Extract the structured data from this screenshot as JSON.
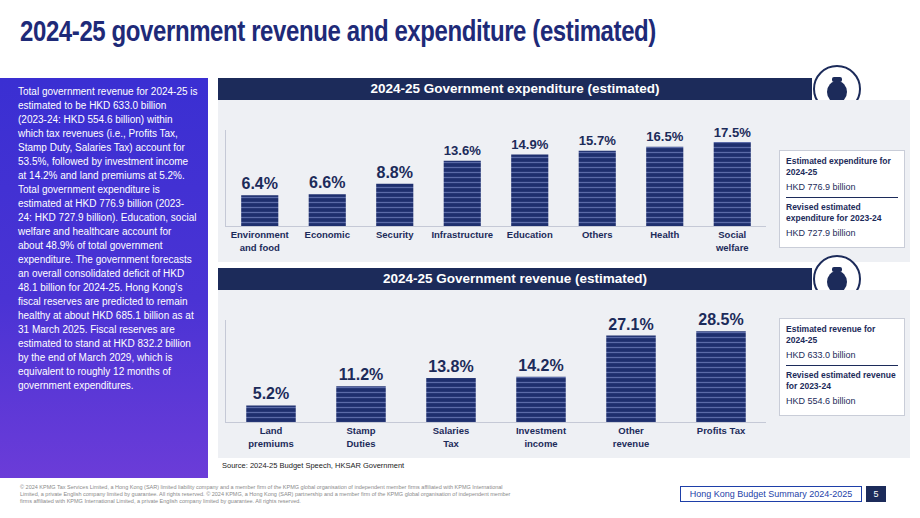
{
  "title": "2024-25 government revenue and expenditure (estimated)",
  "intro": "Total government revenue for 2024-25 is estimated to be HKD 633.0 billion (2023-24: HKD 554.6 billion) within which tax revenues (i.e., Profits Tax, Stamp Duty, Salaries Tax) account for 53.5%, followed by investment income at 14.2% and land premiums at 5.2%. Total government expenditure is estimated at HKD 776.9 billion (2023-24: HKD 727.9 billion). Education, social welfare and healthcare account for about 48.9% of total government expenditure. The government forecasts an overall consolidated deficit of HKD 48.1 billion for 2024-25. Hong Kong’s fiscal reserves are predicted to remain healthy at about HKD 685.1 billion as at 31 March 2025. Fiscal reserves are estimated to stand at HKD 832.2 billion by the end of March 2029, which is equivalent to roughly 12 months of government expenditures.",
  "chart_data": [
    {
      "type": "bar",
      "title": "2024-25 Government expenditure (estimated)",
      "categories": [
        "Environment and food",
        "Economic",
        "Security",
        "Infrastructure",
        "Education",
        "Others",
        "Health",
        "Social welfare"
      ],
      "values": [
        6.4,
        6.6,
        8.8,
        13.6,
        14.9,
        15.7,
        16.5,
        17.5
      ],
      "value_labels": [
        "6.4%",
        "6.6%",
        "8.8%",
        "13.6%",
        "14.9%",
        "15.7%",
        "16.5%",
        "17.5%"
      ],
      "color": "#1e2f6e",
      "ylim": [
        0,
        20
      ],
      "grid": false,
      "data_labels": true,
      "tick_labels": "x"
    },
    {
      "type": "bar",
      "title": "2024-25 Government revenue  (estimated)",
      "categories": [
        "Land premiums",
        "Stamp Duties",
        "Salaries Tax",
        "Investment income",
        "Other revenue",
        "Profits Tax"
      ],
      "values": [
        5.2,
        11.2,
        13.8,
        14.2,
        27.1,
        28.5
      ],
      "value_labels": [
        "5.2%",
        "11.2%",
        "13.8%",
        "14.2%",
        "27.1%",
        "28.5%"
      ],
      "color": "#1e2f6e",
      "ylim": [
        0,
        32
      ],
      "grid": false,
      "data_labels": true,
      "tick_labels": "x"
    }
  ],
  "boxes": [
    [
      {
        "label": "Estimated expenditure for 2024-25",
        "value": "HKD 776.9 billion"
      },
      {
        "label": "Revised estimated expenditure for 2023-24",
        "value": "HKD 727.9 billion"
      }
    ],
    [
      {
        "label": "Estimated revenue for 2024-25",
        "value": "HKD 633.0 billion"
      },
      {
        "label": "Revised estimated revenue for 2023-24",
        "value": "HKD 554.6 billion"
      }
    ]
  ],
  "source": "Source: 2024-25 Budget Speech, HKSAR Government",
  "footer": {
    "legal": "© 2024 KPMG Tax Services Limited, a Hong Kong (SAR) limited liability company and a member firm of the KPMG global organisation of independent member firms affiliated with KPMG International Limited, a private English company limited by guarantee. All rights reserved. © 2024 KPMG, a Hong Kong (SAR) partnership and a member firm of the KPMG global organisation of independent member firms affiliated with KPMG International Limited, a private English company limited by guarantee. All rights reserved.",
    "publication": "Hong Kong Budget Summary 2024-2025",
    "page": "5"
  }
}
